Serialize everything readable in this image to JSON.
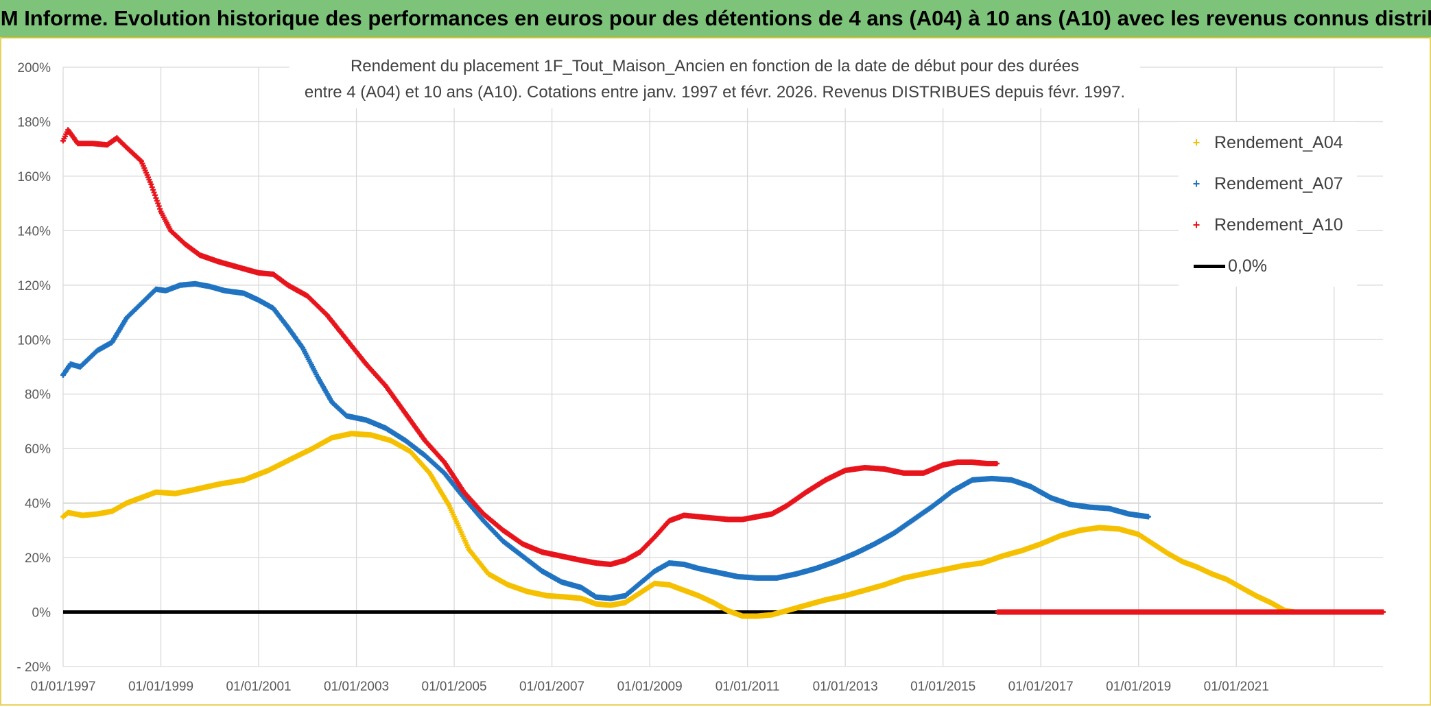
{
  "banner": {
    "title": "ADAM Informe. Evolution historique des performances en euros pour des détentions de 4 ans (A04) à 10 ans (A10) avec les revenus connus distribués"
  },
  "colors": {
    "a04": "#f5c000",
    "a07": "#1f73c0",
    "a10": "#e8141c",
    "zero": "#000000",
    "banner_bg": "#7dc47a"
  },
  "chart_data": {
    "type": "scatter",
    "title_line1": "Rendement du placement 1F_Tout_Maison_Ancien en fonction de la date de début pour des durées",
    "title_line2": "entre 4 (A04) et 10 ans (A10). Cotations entre janv. 1997 et févr. 2026. Revenus DISTRIBUES depuis févr. 1997.",
    "xlim": [
      1997.0,
      2024.0
    ],
    "ylim": [
      -20,
      200
    ],
    "y_ticks": [
      -20,
      0,
      20,
      40,
      60,
      80,
      100,
      120,
      140,
      160,
      180,
      200
    ],
    "y_tick_labels": [
      "- 20%",
      "0%",
      "20%",
      "40%",
      "60%",
      "80%",
      "100%",
      "120%",
      "140%",
      "160%",
      "180%",
      "200%"
    ],
    "x_ticks": [
      1997,
      1999,
      2001,
      2003,
      2005,
      2007,
      2009,
      2011,
      2013,
      2015,
      2017,
      2019,
      2021
    ],
    "x_tick_labels": [
      "01/01/1997",
      "01/01/1999",
      "01/01/2001",
      "01/01/2003",
      "01/01/2005",
      "01/01/2007",
      "01/01/2009",
      "01/01/2011",
      "01/01/2013",
      "01/01/2015",
      "01/01/2017",
      "01/01/2019",
      "01/01/2021"
    ],
    "x_gridlines": [
      1997,
      1999,
      2001,
      2003,
      2005,
      2007,
      2009,
      2011,
      2013,
      2015,
      2017,
      2019,
      2021,
      2023
    ],
    "series": [
      {
        "name": "Rendement_A04",
        "key": "a04",
        "x": [
          1997.0,
          1997.1,
          1997.4,
          1997.7,
          1998.0,
          1998.3,
          1998.6,
          1998.9,
          1999.3,
          1999.7,
          2000.2,
          2000.7,
          2001.2,
          2001.7,
          2002.1,
          2002.5,
          2002.9,
          2003.3,
          2003.7,
          2004.1,
          2004.5,
          2004.9,
          2005.3,
          2005.7,
          2006.1,
          2006.5,
          2006.9,
          2007.3,
          2007.6,
          2007.9,
          2008.2,
          2008.5,
          2008.8,
          2009.1,
          2009.4,
          2009.7,
          2010.0,
          2010.3,
          2010.6,
          2010.9,
          2011.2,
          2011.5,
          2011.8,
          2012.2,
          2012.6,
          2013.0,
          2013.4,
          2013.8,
          2014.2,
          2014.6,
          2015.0,
          2015.4,
          2015.8,
          2016.2,
          2016.6,
          2017.0,
          2017.4,
          2017.8,
          2018.2,
          2018.6,
          2019.0,
          2019.3,
          2019.6,
          2019.9,
          2020.2,
          2020.5,
          2020.8,
          2021.1,
          2021.4,
          2021.7,
          2022.0,
          2022.2,
          2022.4,
          2022.6,
          2022.8,
          2023.0,
          2023.4,
          2023.8,
          2024.0
        ],
        "y": [
          35,
          36.5,
          35.5,
          36,
          37,
          40,
          42,
          44,
          43.5,
          45,
          47,
          48.5,
          52,
          56.5,
          60,
          64,
          65.5,
          65,
          63,
          59,
          51,
          39,
          23,
          14,
          10,
          7.5,
          6,
          5.5,
          5,
          3,
          2.5,
          3.5,
          7,
          10.5,
          10,
          8,
          6,
          3.5,
          0.5,
          -1.5,
          -1.5,
          -1,
          0.5,
          2.5,
          4.5,
          6,
          8,
          10,
          12.5,
          14,
          15.5,
          17,
          18,
          20.5,
          22.5,
          25,
          28,
          30,
          31,
          30.5,
          28.5,
          25,
          21.5,
          18.5,
          16.5,
          14,
          12,
          9,
          6,
          3.5,
          0.5,
          0,
          0,
          0,
          0,
          0,
          0,
          0,
          0
        ]
      },
      {
        "name": "Rendement_A07",
        "key": "a07",
        "x": [
          1997.0,
          1997.15,
          1997.35,
          1997.7,
          1998.0,
          1998.3,
          1998.7,
          1998.9,
          1999.1,
          1999.4,
          1999.7,
          2000.0,
          2000.3,
          2000.7,
          2001.0,
          2001.3,
          2001.6,
          2001.9,
          2002.2,
          2002.5,
          2002.8,
          2003.2,
          2003.6,
          2004.0,
          2004.4,
          2004.8,
          2005.2,
          2005.6,
          2006.0,
          2006.4,
          2006.8,
          2007.2,
          2007.6,
          2007.9,
          2008.2,
          2008.5,
          2008.8,
          2009.1,
          2009.4,
          2009.7,
          2010.0,
          2010.4,
          2010.8,
          2011.2,
          2011.6,
          2012.0,
          2012.4,
          2012.8,
          2013.2,
          2013.6,
          2014.0,
          2014.4,
          2014.8,
          2015.2,
          2015.6,
          2016.0,
          2016.4,
          2016.8,
          2017.2,
          2017.6,
          2018.0,
          2018.4,
          2018.8,
          2019.2
        ],
        "y": [
          87,
          91,
          90,
          96,
          99,
          108,
          115,
          118.5,
          118,
          120,
          120.5,
          119.5,
          118,
          117,
          114.5,
          111.5,
          104.5,
          97,
          86.5,
          77,
          72,
          70.5,
          67.5,
          63,
          57.5,
          51,
          42,
          33.5,
          26,
          20.5,
          15,
          11,
          9,
          5.5,
          5,
          6,
          10.5,
          15,
          18,
          17.5,
          16,
          14.5,
          13,
          12.5,
          12.5,
          14,
          16,
          18.5,
          21.5,
          25,
          29,
          34,
          39,
          44.5,
          48.5,
          49,
          48.5,
          46,
          42,
          39.5,
          38.5,
          38,
          36,
          35
        ]
      },
      {
        "name": "Rendement_A10",
        "key": "a10",
        "x": [
          1997.0,
          1997.1,
          1997.3,
          1997.6,
          1997.9,
          1998.1,
          1998.3,
          1998.6,
          1998.8,
          1999.0,
          1999.2,
          1999.5,
          1999.8,
          2000.2,
          2000.6,
          2001.0,
          2001.3,
          2001.6,
          2002.0,
          2002.4,
          2002.8,
          2003.2,
          2003.6,
          2004.0,
          2004.4,
          2004.8,
          2005.2,
          2005.6,
          2006.0,
          2006.4,
          2006.8,
          2007.2,
          2007.6,
          2007.9,
          2008.2,
          2008.5,
          2008.8,
          2009.1,
          2009.4,
          2009.7,
          2010.0,
          2010.3,
          2010.6,
          2010.9,
          2011.2,
          2011.5,
          2011.8,
          2012.2,
          2012.6,
          2013.0,
          2013.4,
          2013.8,
          2014.2,
          2014.6,
          2015.0,
          2015.3,
          2015.6,
          2015.9,
          2016.1,
          2016.12,
          2017.0,
          2018.0,
          2019.0,
          2020.0,
          2021.0,
          2022.0,
          2023.0,
          2024.0
        ],
        "y": [
          173,
          177,
          172,
          172,
          171.5,
          174,
          170.5,
          165.5,
          157,
          147,
          140,
          135,
          131,
          128.5,
          126.5,
          124.5,
          124,
          120,
          116,
          109,
          100,
          91,
          83,
          73,
          63,
          55,
          44,
          36,
          30,
          25,
          22,
          20.5,
          19,
          18,
          17.5,
          19,
          22,
          27.5,
          33.5,
          35.5,
          35,
          34.5,
          34,
          34,
          35,
          36,
          39,
          44,
          48.5,
          52,
          53,
          52.5,
          51,
          51,
          54,
          55,
          55,
          54.5,
          54.5,
          0,
          0,
          0,
          0,
          0,
          0,
          0,
          0,
          0
        ]
      }
    ],
    "zero_line": {
      "name": "0,0%",
      "y": 0,
      "x_start": 1997.0,
      "x_end": 2016.1
    },
    "legend": [
      {
        "label": "Rendement_A04",
        "marker": "+",
        "color_key": "a04"
      },
      {
        "label": "Rendement_A07",
        "marker": "+",
        "color_key": "a07"
      },
      {
        "label": "Rendement_A10",
        "marker": "+",
        "color_key": "a10"
      },
      {
        "label": "0,0%",
        "marker": "line",
        "color_key": "zero"
      }
    ]
  }
}
